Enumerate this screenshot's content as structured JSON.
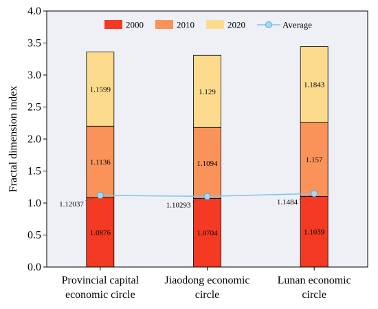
{
  "chart_data": {
    "type": "bar",
    "stacked": true,
    "categories": [
      [
        "Provincial capital",
        "economic circle"
      ],
      [
        "Jiaodong economic",
        "circle"
      ],
      [
        "Lunan economic",
        "circle"
      ]
    ],
    "series": [
      {
        "name": "2000",
        "color": "#f43a22",
        "values": [
          1.0876,
          1.0704,
          1.1039
        ],
        "labels": [
          "1.0876",
          "1.0704",
          "1.1039"
        ]
      },
      {
        "name": "2010",
        "color": "#f9935a",
        "values": [
          1.1136,
          1.1094,
          1.157
        ],
        "labels": [
          "1.1136",
          "1.1094",
          "1.157"
        ]
      },
      {
        "name": "2020",
        "color": "#fddb8e",
        "values": [
          1.1599,
          1.129,
          1.1843
        ],
        "labels": [
          "1.1599",
          "1.129",
          "1.1843"
        ]
      }
    ],
    "average": {
      "name": "Average",
      "color": "#7fc4e8",
      "values": [
        1.12037,
        1.10293,
        1.1484
      ],
      "labels": [
        "1.12037",
        "1.10293",
        "1.1484"
      ]
    },
    "ylabel": "Fractal dimension index",
    "ylim": [
      0,
      4.0
    ],
    "yticks": [
      "0.0",
      "0.5",
      "1.0",
      "1.5",
      "2.0",
      "2.5",
      "3.0",
      "3.5",
      "4.0"
    ],
    "grid": false,
    "legend": "top-center"
  }
}
